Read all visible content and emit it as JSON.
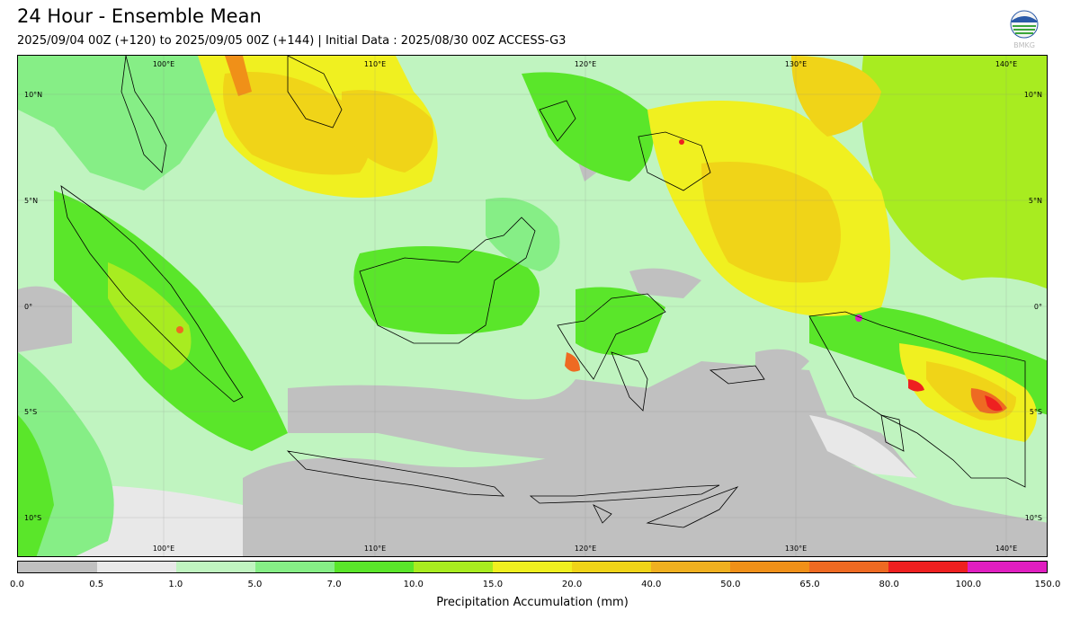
{
  "header": {
    "title": "24 Hour - Ensemble Mean",
    "subtitle": "2025/09/04 00Z (+120) to 2025/09/05 00Z (+144) | Initial Data : 2025/08/30 00Z ACCESS-G3",
    "logo_text": "BMKG"
  },
  "map": {
    "extent": {
      "lon_min": 92,
      "lon_max": 141.2,
      "lat_min": -12,
      "lat_max": 12
    },
    "grid": true,
    "longitude_labels": [
      "100°E",
      "110°E",
      "120°E",
      "130°E",
      "140°E"
    ],
    "latitude_labels": [
      "10°N",
      "5°N",
      "0°",
      "5°S",
      "10°S"
    ]
  },
  "colorbar": {
    "label": "Precipitation Accumulation (mm)",
    "ticks": [
      "0.0",
      "0.5",
      "1.0",
      "5.0",
      "7.0",
      "10.0",
      "15.0",
      "20.0",
      "40.0",
      "50.0",
      "65.0",
      "80.0",
      "100.0",
      "150.0"
    ],
    "colors": [
      "#c0c0c0",
      "#e8e8e8",
      "#c0f4c0",
      "#86ee86",
      "#5ae62a",
      "#a8ec20",
      "#f0f020",
      "#f0d418",
      "#f0b020",
      "#f09018",
      "#ee6a22",
      "#ee2020",
      "#e01ec0"
    ]
  }
}
